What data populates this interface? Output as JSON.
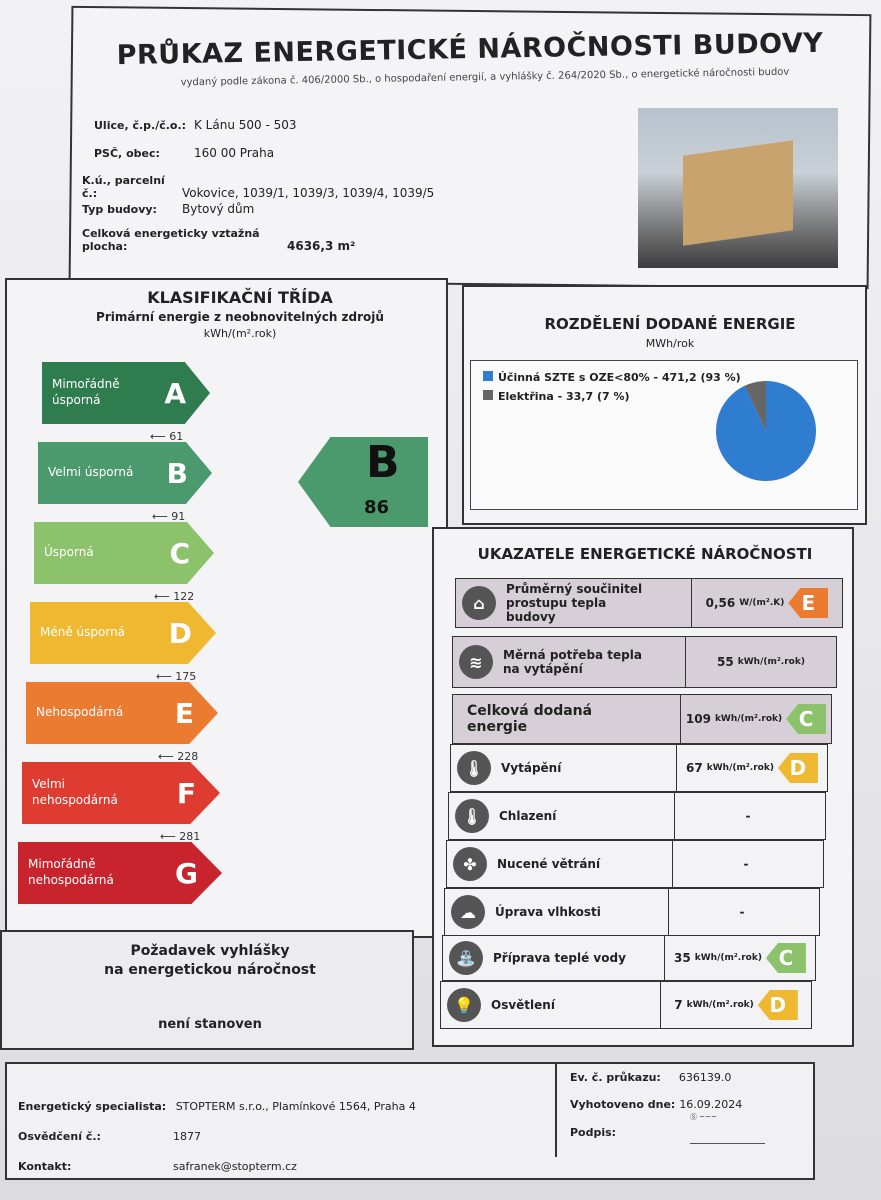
{
  "header": {
    "title": "PRŮKAZ ENERGETICKÉ NÁROČNOSTI BUDOVY",
    "subtitle": "vydaný podle zákona č. 406/2000 Sb., o hospodaření energií, a vyhlášky č. 264/2020 Sb., o energetické náročnosti budov"
  },
  "building": [
    {
      "label": "Ulice, č.p./č.o.:",
      "value": "K Lánu 500 - 503"
    },
    {
      "label": "PSČ, obec:",
      "value": "160 00 Praha"
    },
    {
      "label": "K.ú., parcelní č.:",
      "value": "Vokovice, 1039/1, 1039/3, 1039/4, 1039/5"
    },
    {
      "label": "Typ budovy:",
      "value": "Bytový dům"
    },
    {
      "label": "Celková energeticky vztažná plocha:",
      "value": "4636,3 m²"
    }
  ],
  "classification": {
    "title": "KLASIFIKAČNÍ TŘÍDA",
    "subtitle": "Primární energie z neobnovitelných zdrojů",
    "unit": "kWh/(m².rok)",
    "classes": [
      {
        "letter": "A",
        "label": "Mimořádně úsporná",
        "color": "#2f7d4f",
        "threshold": "61"
      },
      {
        "letter": "B",
        "label": "Velmi úsporná",
        "color": "#4a9a6e",
        "threshold": "91"
      },
      {
        "letter": "C",
        "label": "Úsporná",
        "color": "#8cc26b",
        "threshold": "122"
      },
      {
        "letter": "D",
        "label": "Méně úsporná",
        "color": "#f0b731",
        "threshold": "175"
      },
      {
        "letter": "E",
        "label": "Nehospodárná",
        "color": "#ec7b32",
        "threshold": "228"
      },
      {
        "letter": "F",
        "label": "Velmi nehospodárná",
        "color": "#de3b31",
        "threshold": "281"
      },
      {
        "letter": "G",
        "label": "Mimořádně nehospodárná",
        "color": "#c8242d",
        "threshold": ""
      }
    ],
    "current": {
      "letter": "B",
      "value": "86"
    }
  },
  "requirement": {
    "title_line1": "Požadavek vyhlášky",
    "title_line2": "na energetickou náročnost",
    "value": "není stanoven"
  },
  "distribution": {
    "title": "ROZDĚLENÍ DODANÉ ENERGIE",
    "unit": "MWh/rok",
    "items": [
      {
        "label": "Účinná SZTE s OZE<80% - 471,2 (93 %)",
        "percent": 93,
        "color": "#2f7dd0"
      },
      {
        "label": "Elektřina - 33,7 (7 %)",
        "percent": 7,
        "color": "#666666"
      }
    ]
  },
  "indicators": {
    "title": "UKAZATELE ENERGETICKÉ NÁROČNOSTI",
    "rows": [
      {
        "icon": "house-icon",
        "glyph": "⌂",
        "label": "Průměrný součinitel prostupu tepla budovy",
        "value": "0,56",
        "unit": "W/(m².K)",
        "class": "E",
        "color": "#ec7b32"
      },
      {
        "icon": "heat-demand-icon",
        "glyph": "≋",
        "label": "Měrná potřeba tepla na vytápění",
        "value": "55",
        "unit": "kWh/(m².rok)",
        "class": "",
        "color": ""
      },
      {
        "icon": "",
        "glyph": "",
        "label": "Celková dodaná energie",
        "value": "109",
        "unit": "kWh/(m².rok)",
        "class": "C",
        "color": "#8cc26b"
      },
      {
        "icon": "heating-thermometer-icon",
        "glyph": "🌡",
        "label": "Vytápění",
        "value": "67",
        "unit": "kWh/(m².rok)",
        "class": "D",
        "color": "#f0b731"
      },
      {
        "icon": "cooling-thermometer-icon",
        "glyph": "🌡",
        "label": "Chlazení",
        "value": "-",
        "unit": "",
        "class": "",
        "color": ""
      },
      {
        "icon": "fan-icon",
        "glyph": "✤",
        "label": "Nucené větrání",
        "value": "-",
        "unit": "",
        "class": "",
        "color": ""
      },
      {
        "icon": "humidity-cloud-icon",
        "glyph": "☁",
        "label": "Úprava vlhkosti",
        "value": "-",
        "unit": "",
        "class": "",
        "color": ""
      },
      {
        "icon": "water-tap-icon",
        "glyph": "⛲",
        "label": "Příprava teplé vody",
        "value": "35",
        "unit": "kWh/(m².rok)",
        "class": "C",
        "color": "#8cc26b"
      },
      {
        "icon": "lightbulb-icon",
        "glyph": "💡",
        "label": "Osvětlení",
        "value": "7",
        "unit": "kWh/(m².rok)",
        "class": "D",
        "color": "#f0b731"
      }
    ]
  },
  "footer": {
    "specialist_label": "Energetický specialista:",
    "specialist": "STOPTERM s.r.o., Plamínkové 1564, Praha 4",
    "cert_label": "Osvědčení č.:",
    "cert": "1877",
    "contact_label": "Kontakt:",
    "contact": "safranek@stopterm.cz",
    "ev_label": "Ev. č. průkazu:",
    "ev": "636139.0",
    "date_label": "Vyhotoveno dne:",
    "date": "16.09.2024",
    "sign_label": "Podpis:"
  }
}
